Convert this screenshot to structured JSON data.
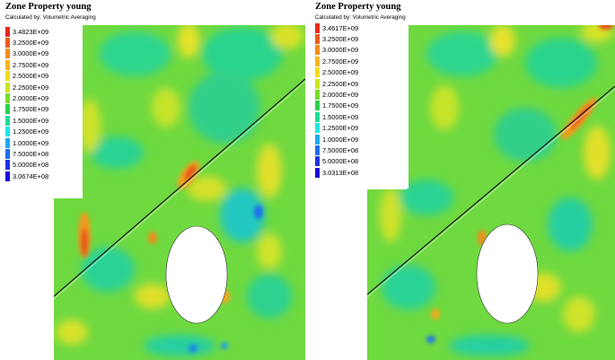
{
  "chart_data": [
    {
      "type": "heatmap",
      "title": "Zone Property young",
      "subtitle": "Calculated by: Volumetric Averaging",
      "legend_position": "top-left",
      "legend": [
        {
          "label": "3.4823E+09",
          "value": 3482300000.0,
          "color": "#e8281e"
        },
        {
          "label": "3.2500E+09",
          "value": 3250000000.0,
          "color": "#ef5a1e"
        },
        {
          "label": "3.0000E+09",
          "value": 3000000000.0,
          "color": "#f48c1e"
        },
        {
          "label": "2.7500E+09",
          "value": 2750000000.0,
          "color": "#f8b41e"
        },
        {
          "label": "2.5000E+09",
          "value": 2500000000.0,
          "color": "#f0dc1e"
        },
        {
          "label": "2.2500E+09",
          "value": 2250000000.0,
          "color": "#c8e61e"
        },
        {
          "label": "2.0000E+09",
          "value": 2000000000.0,
          "color": "#78dc28"
        },
        {
          "label": "1.7500E+09",
          "value": 1750000000.0,
          "color": "#28d24b"
        },
        {
          "label": "1.5000E+09",
          "value": 1500000000.0,
          "color": "#1edc96"
        },
        {
          "label": "1.2500E+09",
          "value": 1250000000.0,
          "color": "#1ee6e6"
        },
        {
          "label": "1.0000E+09",
          "value": 1000000000.0,
          "color": "#1eaaf0"
        },
        {
          "label": "7.5000E+08",
          "value": 750000000.0,
          "color": "#1e6ef0"
        },
        {
          "label": "5.0000E+08",
          "value": 500000000.0,
          "color": "#1e32e6"
        },
        {
          "label": "3.0674E+08",
          "value": 306740000.0,
          "color": "#1e0adc"
        }
      ]
    },
    {
      "type": "heatmap",
      "title": "Zone Property young",
      "subtitle": "Calculated by: Volumetric Averaging",
      "legend_position": "top-left",
      "legend": [
        {
          "label": "3.4617E+09",
          "value": 3461700000.0,
          "color": "#e8281e"
        },
        {
          "label": "3.2500E+09",
          "value": 3250000000.0,
          "color": "#ef5a1e"
        },
        {
          "label": "3.0000E+09",
          "value": 3000000000.0,
          "color": "#f48c1e"
        },
        {
          "label": "2.7500E+09",
          "value": 2750000000.0,
          "color": "#f8b41e"
        },
        {
          "label": "2.5000E+09",
          "value": 2500000000.0,
          "color": "#f0dc1e"
        },
        {
          "label": "2.2500E+09",
          "value": 2250000000.0,
          "color": "#c8e61e"
        },
        {
          "label": "2.0000E+09",
          "value": 2000000000.0,
          "color": "#78dc28"
        },
        {
          "label": "1.7500E+09",
          "value": 1750000000.0,
          "color": "#28d24b"
        },
        {
          "label": "1.5000E+09",
          "value": 1500000000.0,
          "color": "#1edc96"
        },
        {
          "label": "1.2500E+09",
          "value": 1250000000.0,
          "color": "#1ee6e6"
        },
        {
          "label": "1.0000E+09",
          "value": 1000000000.0,
          "color": "#1eaaf0"
        },
        {
          "label": "7.5000E+08",
          "value": 750000000.0,
          "color": "#1e6ef0"
        },
        {
          "label": "5.0000E+08",
          "value": 500000000.0,
          "color": "#1e32e6"
        },
        {
          "label": "3.0313E+08",
          "value": 303130000.0,
          "color": "#1e0adc"
        }
      ]
    }
  ]
}
